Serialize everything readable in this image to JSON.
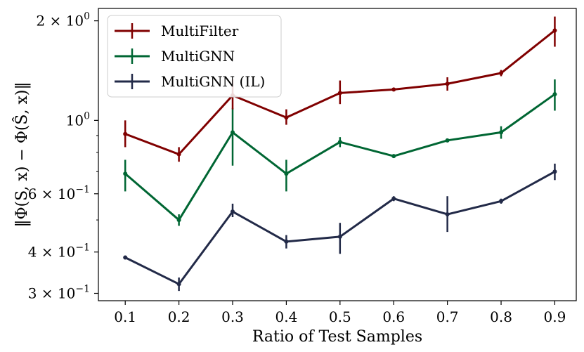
{
  "chart_data": {
    "type": "line",
    "title": "",
    "xlabel": "Ratio of Test Samples",
    "ylabel": "‖Φ(S, x) − Φ(Ŝ, x)‖",
    "yscale": "log",
    "xlim": [
      0.05,
      0.94
    ],
    "ylim": [
      0.285,
      2.18
    ],
    "x": [
      0.1,
      0.2,
      0.3,
      0.4,
      0.5,
      0.6,
      0.7,
      0.8,
      0.9
    ],
    "x_tick_labels": [
      "0.1",
      "0.2",
      "0.3",
      "0.4",
      "0.5",
      "0.6",
      "0.7",
      "0.8",
      "0.9"
    ],
    "y_ticks": [
      {
        "value": 0.3,
        "mantissa": "3 × 10",
        "exponent": "−1"
      },
      {
        "value": 0.4,
        "mantissa": "4 × 10",
        "exponent": "−1"
      },
      {
        "value": 0.6,
        "mantissa": "6 × 10",
        "exponent": "−1"
      },
      {
        "value": 1.0,
        "mantissa": "10",
        "exponent": "0"
      },
      {
        "value": 2.0,
        "mantissa": "2 × 10",
        "exponent": "0"
      }
    ],
    "series": [
      {
        "name": "MultiFilter",
        "color": "#800000",
        "values": [
          0.91,
          0.79,
          1.19,
          1.02,
          1.21,
          1.24,
          1.29,
          1.39,
          1.87
        ],
        "err_low": [
          0.83,
          0.75,
          1.08,
          0.97,
          1.12,
          1.23,
          1.23,
          1.36,
          1.67
        ],
        "err_high": [
          1.0,
          0.83,
          1.33,
          1.08,
          1.32,
          1.25,
          1.35,
          1.42,
          2.06
        ]
      },
      {
        "name": "MultiGNN",
        "color": "#006633",
        "values": [
          0.69,
          0.5,
          0.92,
          0.69,
          0.86,
          0.78,
          0.87,
          0.92,
          1.2
        ],
        "err_low": [
          0.61,
          0.48,
          0.73,
          0.61,
          0.83,
          0.77,
          0.86,
          0.88,
          1.07
        ],
        "err_high": [
          0.76,
          0.52,
          1.09,
          0.76,
          0.89,
          0.79,
          0.88,
          0.96,
          1.33
        ]
      },
      {
        "name": "MultiGNN (IL)",
        "color": "#222a48",
        "values": [
          0.385,
          0.32,
          0.53,
          0.43,
          0.445,
          0.58,
          0.52,
          0.57,
          0.7
        ],
        "err_low": [
          0.38,
          0.305,
          0.51,
          0.41,
          0.395,
          0.57,
          0.46,
          0.56,
          0.66
        ],
        "err_high": [
          0.39,
          0.335,
          0.56,
          0.45,
          0.49,
          0.59,
          0.59,
          0.58,
          0.74
        ]
      }
    ],
    "legend": {
      "position": "top-left"
    },
    "grid": false
  }
}
